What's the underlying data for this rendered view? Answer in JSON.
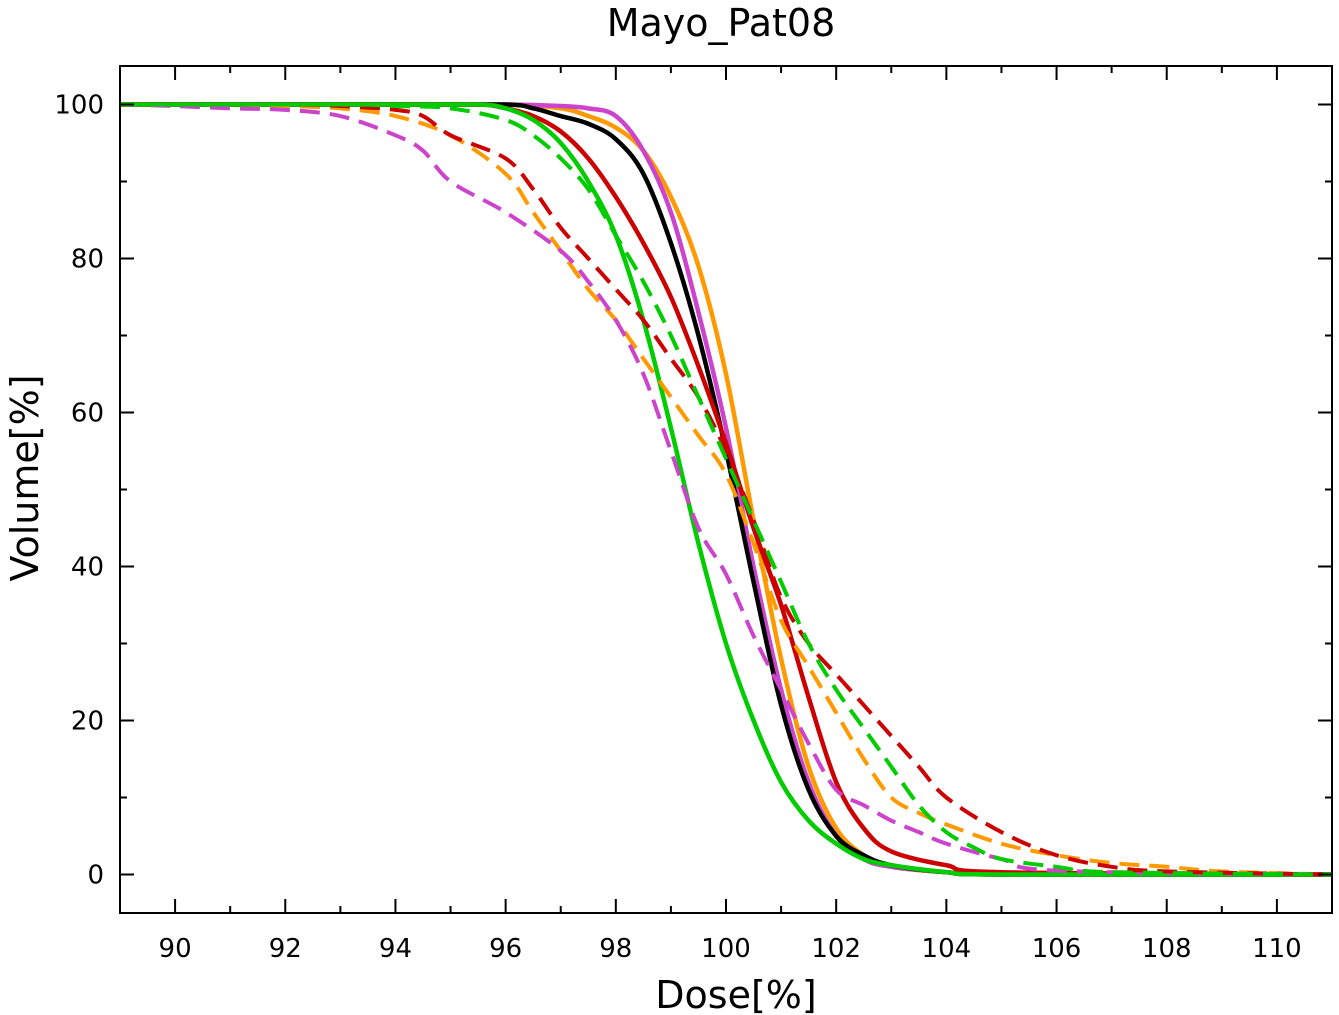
{
  "chart_data": {
    "type": "line",
    "title": "Mayo_Pat08",
    "xlabel": "Dose[%]",
    "ylabel": "Volume[%]",
    "xlim": [
      89,
      111
    ],
    "ylim": [
      -5,
      105
    ],
    "xticks": [
      90,
      92,
      94,
      96,
      98,
      100,
      102,
      104,
      106,
      108,
      110
    ],
    "yticks": [
      0,
      20,
      40,
      60,
      80,
      100
    ],
    "grid": false,
    "legend": "none",
    "series": [
      {
        "color": "#ff9900",
        "style": "solid",
        "x": [
          89,
          94,
          96,
          97,
          97.5,
          98,
          98.5,
          99,
          99.5,
          100,
          100.5,
          101,
          101.5,
          102,
          102.5,
          103,
          104,
          105,
          111
        ],
        "y": [
          100,
          100,
          100,
          99.5,
          98.5,
          97,
          94,
          88,
          79,
          65,
          46,
          28,
          14,
          6,
          2.5,
          1,
          0.3,
          0,
          0
        ]
      },
      {
        "color": "#cc44cc",
        "style": "solid",
        "x": [
          89,
          94,
          96,
          97,
          97.5,
          98,
          98.5,
          99,
          99.5,
          100,
          100.5,
          101,
          101.5,
          102,
          102.5,
          103,
          104,
          105,
          111
        ],
        "y": [
          100,
          100,
          100,
          99.8,
          99.5,
          98.5,
          94,
          86,
          73,
          58,
          40,
          24,
          12,
          5,
          2,
          1,
          0.3,
          0,
          0
        ]
      },
      {
        "color": "#000000",
        "style": "solid",
        "x": [
          89,
          94,
          96,
          96.5,
          97,
          97.5,
          98,
          98.5,
          99,
          99.5,
          100,
          100.5,
          101,
          101.5,
          102,
          102.5,
          103,
          104,
          105,
          111
        ],
        "y": [
          100,
          100,
          100,
          99.5,
          98.5,
          97.5,
          95.5,
          91,
          82,
          70,
          55,
          38,
          22,
          11,
          5,
          2.5,
          1.2,
          0.3,
          0,
          0
        ]
      },
      {
        "color": "#cc0000",
        "style": "solid",
        "x": [
          89,
          94,
          95.5,
          96,
          96.5,
          97,
          97.5,
          98,
          98.5,
          99,
          99.5,
          100,
          100.5,
          101,
          101.5,
          102,
          102.5,
          103,
          104,
          105,
          111
        ],
        "y": [
          100,
          100,
          100,
          99.5,
          98.5,
          96.5,
          93,
          88,
          82,
          75,
          66,
          56,
          45,
          35,
          23,
          12,
          6,
          3,
          1.2,
          0.3,
          0
        ]
      },
      {
        "color": "#00cc00",
        "style": "solid",
        "x": [
          89,
          94,
          95.5,
          96,
          96.5,
          97,
          97.5,
          98,
          98.5,
          99,
          99.5,
          100,
          100.5,
          101,
          101.5,
          102,
          102.5,
          103,
          104,
          105,
          111
        ],
        "y": [
          100,
          100,
          100,
          99.5,
          98,
          95,
          90,
          83,
          72,
          58,
          43,
          30,
          20,
          12,
          7,
          4,
          2,
          1.2,
          0.3,
          0,
          0
        ]
      },
      {
        "color": "#ff9900",
        "style": "dashed",
        "x": [
          89,
          91,
          92,
          93,
          94,
          95,
          96,
          96.5,
          97,
          97.5,
          98,
          98.5,
          99,
          99.5,
          100,
          100.5,
          101,
          101.5,
          102,
          102.5,
          103,
          103.5,
          104,
          105,
          106,
          107,
          108,
          109,
          111
        ],
        "y": [
          100,
          100,
          99.8,
          99.5,
          98.5,
          96,
          91,
          86,
          81,
          76,
          72,
          67,
          62,
          57,
          52,
          43,
          33,
          27,
          21,
          15,
          10,
          8,
          6.5,
          4,
          2.5,
          1.5,
          1,
          0.4,
          0
        ]
      },
      {
        "color": "#cc44cc",
        "style": "dashed",
        "x": [
          89,
          90,
          91,
          92,
          93,
          94,
          94.5,
          95,
          96,
          97,
          97.5,
          98,
          98.5,
          99,
          99.5,
          100,
          100.5,
          101,
          101.5,
          102,
          102.5,
          103,
          103.5,
          104,
          105,
          106,
          111
        ],
        "y": [
          100,
          99.8,
          99.5,
          99.3,
          98.5,
          96,
          94,
          90,
          86,
          81,
          77,
          72,
          65,
          55,
          45,
          39,
          31,
          24,
          17,
          11,
          9,
          7,
          5.5,
          4,
          2,
          0.5,
          0
        ]
      },
      {
        "color": "#cc0000",
        "style": "dashed",
        "x": [
          89,
          92,
          93,
          94,
          94.5,
          95,
          96,
          96.5,
          97,
          97.5,
          98,
          98.5,
          99,
          99.5,
          100,
          100.5,
          101,
          101.5,
          102,
          102.5,
          103,
          103.5,
          104,
          105,
          106,
          107,
          108,
          111
        ],
        "y": [
          100,
          100,
          99.8,
          99.3,
          98.5,
          96,
          93,
          89,
          84,
          80,
          76,
          72,
          67,
          62,
          55,
          46,
          36,
          30,
          26,
          22,
          18,
          14,
          10,
          5.5,
          2.5,
          1,
          0.4,
          0
        ]
      },
      {
        "color": "#00cc00",
        "style": "dashed",
        "x": [
          89,
          93,
          94,
          95,
          96,
          96.5,
          97,
          97.5,
          98,
          98.5,
          99,
          99.5,
          100,
          100.5,
          101,
          101.5,
          102,
          102.5,
          103,
          103.5,
          104,
          104.5,
          105,
          106,
          107,
          111
        ],
        "y": [
          100,
          100,
          99.8,
          99.5,
          98,
          96,
          93,
          89,
          83,
          77,
          70,
          62,
          54,
          46,
          38,
          30,
          24,
          19,
          14,
          9,
          5.5,
          3.5,
          2,
          1,
          0.3,
          0
        ]
      }
    ]
  }
}
